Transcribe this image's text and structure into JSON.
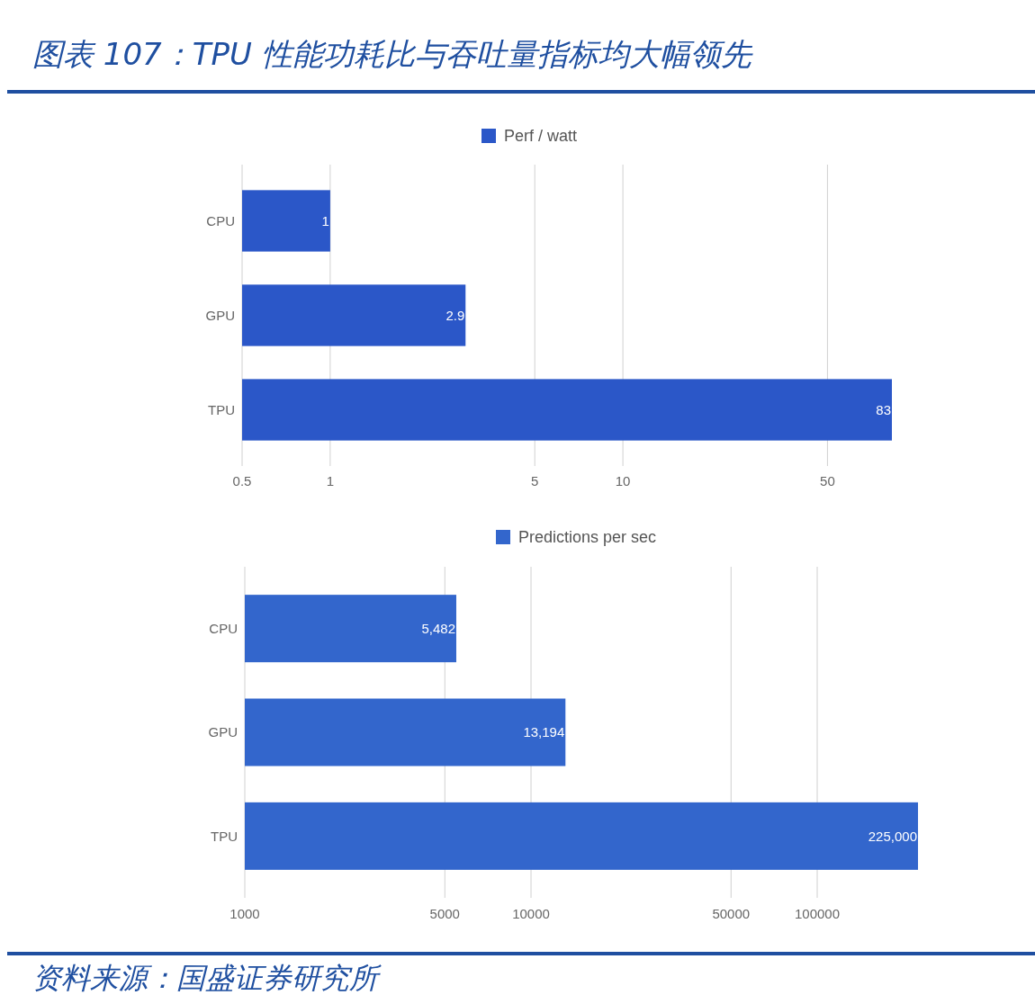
{
  "chart_data": [
    {
      "type": "bar",
      "title": "图表 107：TPU 性能功耗比与吞吐量指标均大幅领先",
      "orientation": "horizontal",
      "log": "x",
      "categories": [
        "CPU",
        "GPU",
        "TPU"
      ],
      "series": [
        {
          "name": "Perf / watt",
          "color": "#2b57c8",
          "values": [
            1,
            2.9,
            83
          ]
        }
      ],
      "xlim": [
        0.5,
        83
      ],
      "xticks": [
        0.5,
        1,
        5,
        10,
        50
      ],
      "grid": "x",
      "legend": "top",
      "data_labels": true
    },
    {
      "type": "bar",
      "orientation": "horizontal",
      "log": "x",
      "categories": [
        "CPU",
        "GPU",
        "TPU"
      ],
      "series": [
        {
          "name": "Predictions per sec",
          "color": "#3366cc",
          "values": [
            5482,
            13194,
            225000
          ]
        }
      ],
      "value_labels": [
        "5,482",
        "13,194",
        "225,000"
      ],
      "xlim": [
        1000,
        225000
      ],
      "xticks": [
        1000,
        5000,
        10000,
        50000,
        100000
      ],
      "grid": "x",
      "legend": "top",
      "annotations": [
        "资料来源：国盛证券研究所"
      ]
    }
  ]
}
